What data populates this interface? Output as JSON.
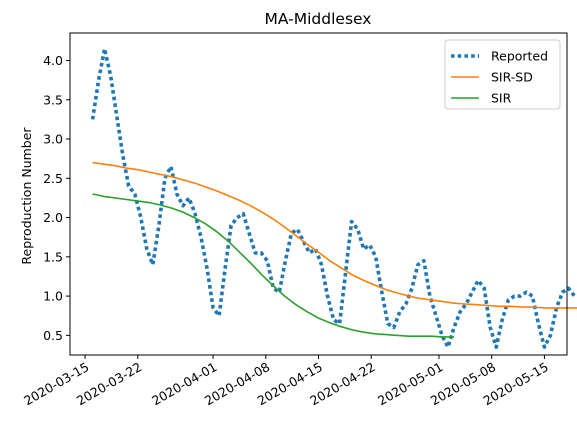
{
  "chart_data": {
    "type": "line",
    "title": "MA-Middlesex",
    "xlabel": "",
    "ylabel": "Reproduction Number",
    "x_start_date": "2020-03-16",
    "xlim": [
      "2020-03-13",
      "2020-05-18"
    ],
    "ylim": [
      0.25,
      4.35
    ],
    "x_ticks": [
      "2020-03-15",
      "2020-03-22",
      "2020-04-01",
      "2020-04-08",
      "2020-04-15",
      "2020-04-22",
      "2020-05-01",
      "2020-05-08",
      "2020-05-15"
    ],
    "y_ticks": [
      "0.5",
      "1.0",
      "1.5",
      "2.0",
      "2.5",
      "3.0",
      "3.5",
      "4.0"
    ],
    "grid": false,
    "legend_position": "top-right",
    "series": [
      {
        "name": "Reported",
        "color": "#1f77b4",
        "style": "dotted",
        "values": [
          3.25,
          3.75,
          4.15,
          3.8,
          3.3,
          2.8,
          2.4,
          2.3,
          2.0,
          1.6,
          1.4,
          1.9,
          2.5,
          2.65,
          2.3,
          2.15,
          2.25,
          2.05,
          1.75,
          1.35,
          0.85,
          0.75,
          1.35,
          1.9,
          2.0,
          2.05,
          1.8,
          1.55,
          1.55,
          1.45,
          1.1,
          1.05,
          1.45,
          1.8,
          1.85,
          1.7,
          1.55,
          1.6,
          1.4,
          1.0,
          0.7,
          0.65,
          1.3,
          1.95,
          1.85,
          1.6,
          1.65,
          1.5,
          1.05,
          0.65,
          0.6,
          0.8,
          0.9,
          1.1,
          1.4,
          1.45,
          1.0,
          0.75,
          0.5,
          0.35,
          0.6,
          0.8,
          0.9,
          1.05,
          1.2,
          1.1,
          0.6,
          0.35,
          0.7,
          0.95,
          1.0,
          1.0,
          1.05,
          1.0,
          0.65,
          0.35,
          0.5,
          0.85,
          1.05,
          1.1,
          1.0,
          1.0
        ]
      },
      {
        "name": "SIR-SD",
        "color": "#ff7f0e",
        "style": "solid",
        "values": [
          2.7,
          2.68,
          2.66,
          2.63,
          2.61,
          2.58,
          2.55,
          2.52,
          2.48,
          2.44,
          2.39,
          2.34,
          2.28,
          2.22,
          2.15,
          2.07,
          1.98,
          1.88,
          1.77,
          1.66,
          1.56,
          1.45,
          1.36,
          1.27,
          1.2,
          1.14,
          1.08,
          1.04,
          1.0,
          0.97,
          0.95,
          0.93,
          0.91,
          0.9,
          0.89,
          0.88,
          0.87,
          0.87,
          0.86,
          0.86,
          0.85,
          0.85,
          0.85,
          0.85,
          0.84,
          0.84
        ]
      },
      {
        "name": "SIR",
        "color": "#2ca02c",
        "style": "solid",
        "values": [
          2.3,
          2.27,
          2.25,
          2.23,
          2.21,
          2.19,
          2.16,
          2.12,
          2.07,
          2.0,
          1.92,
          1.82,
          1.7,
          1.56,
          1.42,
          1.27,
          1.13,
          1.0,
          0.89,
          0.8,
          0.72,
          0.66,
          0.61,
          0.57,
          0.54,
          0.52,
          0.51,
          0.5,
          0.49,
          0.49,
          0.49,
          0.48,
          0.48
        ]
      }
    ]
  }
}
